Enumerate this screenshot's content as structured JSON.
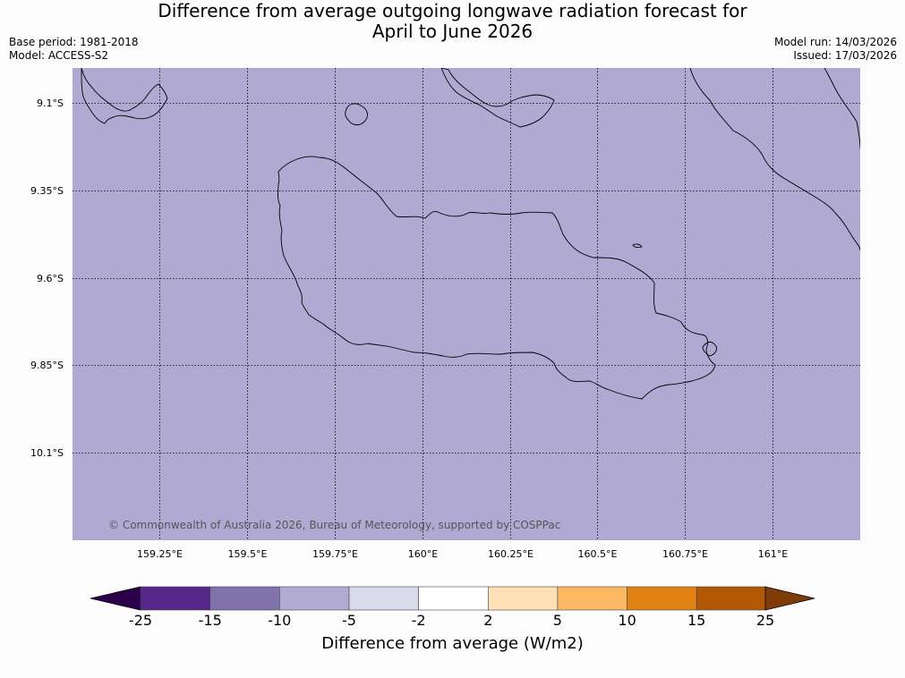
{
  "title": {
    "line1": "Difference from average outgoing longwave radiation forecast for",
    "line2": "April to June 2026"
  },
  "meta": {
    "base_period": "Base period: 1981-2018",
    "model": "Model: ACCESS-S2",
    "model_run": "Model run: 14/03/2026",
    "issued": "Issued: 17/03/2026"
  },
  "map": {
    "background_color": "#b0aad3",
    "lat_labels": [
      "9.1°S",
      "9.35°S",
      "9.6°S",
      "9.85°S",
      "10.1°S"
    ],
    "lon_labels": [
      "159.25°E",
      "159.5°E",
      "159.75°E",
      "160°E",
      "160.25°E",
      "160.5°E",
      "160.75°E",
      "161°E"
    ],
    "copyright": "© Commonwealth of Australia 2026, Bureau of Meteorology, supported by COSPPac"
  },
  "colorbar": {
    "title": "Difference from average (W/m2)",
    "ticks": [
      "-25",
      "-15",
      "-10",
      "-5",
      "-2",
      "2",
      "5",
      "10",
      "15",
      "25"
    ],
    "colors": [
      "#2d004b",
      "#542788",
      "#8073ac",
      "#b2abd2",
      "#d8daeb",
      "#ffffff",
      "#fee0b6",
      "#fdb863",
      "#e08214",
      "#b35806",
      "#7f3b08"
    ]
  }
}
